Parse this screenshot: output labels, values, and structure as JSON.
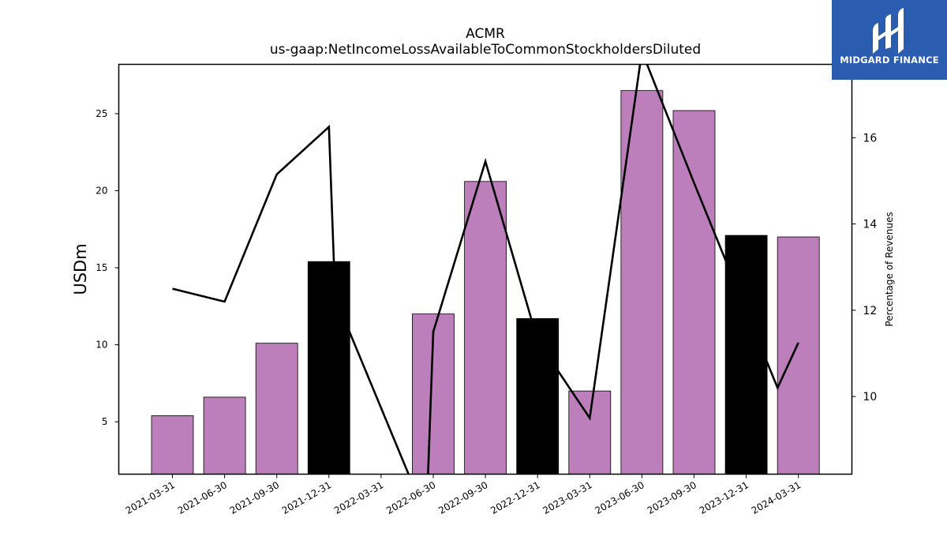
{
  "chart_data": {
    "type": "bar",
    "title": "ACMR",
    "subtitle": "us-gaap:NetIncomeLossAvailableToCommonStockholdersDiluted",
    "ylabel": "USDm",
    "y2label": "Percentage of Revenues",
    "categories": [
      "2021-03-31",
      "2021-06-30",
      "2021-09-30",
      "2021-12-31",
      "2022-03-31",
      "2022-06-30",
      "2022-09-30",
      "2022-12-31",
      "2023-03-31",
      "2023-06-30",
      "2023-09-30",
      "2023-12-31",
      "2024-03-31"
    ],
    "bar_values": [
      5.4,
      6.6,
      10.1,
      15.4,
      null,
      12.0,
      20.6,
      11.7,
      7.0,
      26.5,
      25.2,
      17.1,
      17.0
    ],
    "bar_colors": [
      "#bc7fbc",
      "#bc7fbc",
      "#bc7fbc",
      "#000000",
      "#bc7fbc",
      "#bc7fbc",
      "#bc7fbc",
      "#000000",
      "#bc7fbc",
      "#bc7fbc",
      "#bc7fbc",
      "#000000",
      "#bc7fbc"
    ],
    "line_values": [
      12.5,
      12.2,
      15.15,
      16.25,
      12.3,
      7.2,
      11.5,
      15.45,
      11.3,
      9.5,
      18.0,
      14.95,
      10.2,
      11.25
    ],
    "line_x_index": [
      0,
      1,
      2,
      3,
      3.12,
      4.87,
      5,
      6,
      7,
      8,
      9,
      10,
      11.6,
      12
    ],
    "ylim": [
      1.6,
      28.2
    ],
    "y_ticks": [
      5,
      10,
      15,
      20,
      25
    ],
    "y2lim": [
      8.2,
      17.7
    ],
    "y2_ticks": [
      10,
      12,
      14,
      16
    ],
    "grid": false,
    "legend": "none"
  },
  "logo": {
    "text": "MIDGARD FINANCE"
  }
}
